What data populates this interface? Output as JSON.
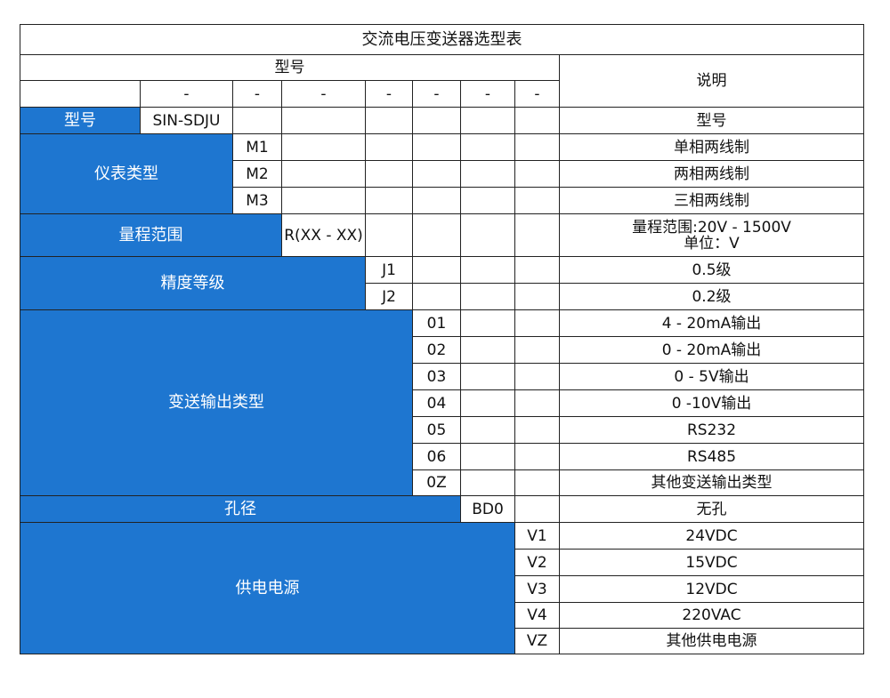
{
  "title": "交流电压变送器选型表",
  "header": {
    "model": "型号",
    "desc": "说明",
    "dash": "-"
  },
  "colors": {
    "category_bg": "#1e76d0"
  },
  "rows": {
    "model": {
      "label": "型号",
      "code": "SIN-SDJU",
      "desc": "型号"
    },
    "meter": {
      "label": "仪表类型",
      "items": [
        {
          "code": "M1",
          "desc": "单相两线制"
        },
        {
          "code": "M2",
          "desc": "两相两线制"
        },
        {
          "code": "M3",
          "desc": "三相两线制"
        }
      ]
    },
    "range": {
      "label": "量程范围",
      "code": "R(XX - XX)",
      "desc1": "量程范围:20V - 1500V",
      "desc2": "单位：V"
    },
    "accuracy": {
      "label": "精度等级",
      "items": [
        {
          "code": "J1",
          "desc": "0.5级"
        },
        {
          "code": "J2",
          "desc": "0.2级"
        }
      ]
    },
    "output": {
      "label": "变送输出类型",
      "items": [
        {
          "code": "01",
          "desc": "4 - 20mA输出"
        },
        {
          "code": "02",
          "desc": "0 - 20mA输出"
        },
        {
          "code": "03",
          "desc": "0 - 5V输出"
        },
        {
          "code": "04",
          "desc": "0 -10V输出"
        },
        {
          "code": "05",
          "desc": "RS232"
        },
        {
          "code": "06",
          "desc": "RS485"
        },
        {
          "code": "0Z",
          "desc": "其他变送输出类型"
        }
      ]
    },
    "hole": {
      "label": "孔径",
      "code": "BD0",
      "desc": "无孔"
    },
    "power": {
      "label": "供电电源",
      "items": [
        {
          "code": "V1",
          "desc": "24VDC"
        },
        {
          "code": "V2",
          "desc": "15VDC"
        },
        {
          "code": "V3",
          "desc": "12VDC"
        },
        {
          "code": "V4",
          "desc": "220VAC"
        },
        {
          "code": "VZ",
          "desc": "其他供电电源"
        }
      ]
    }
  }
}
